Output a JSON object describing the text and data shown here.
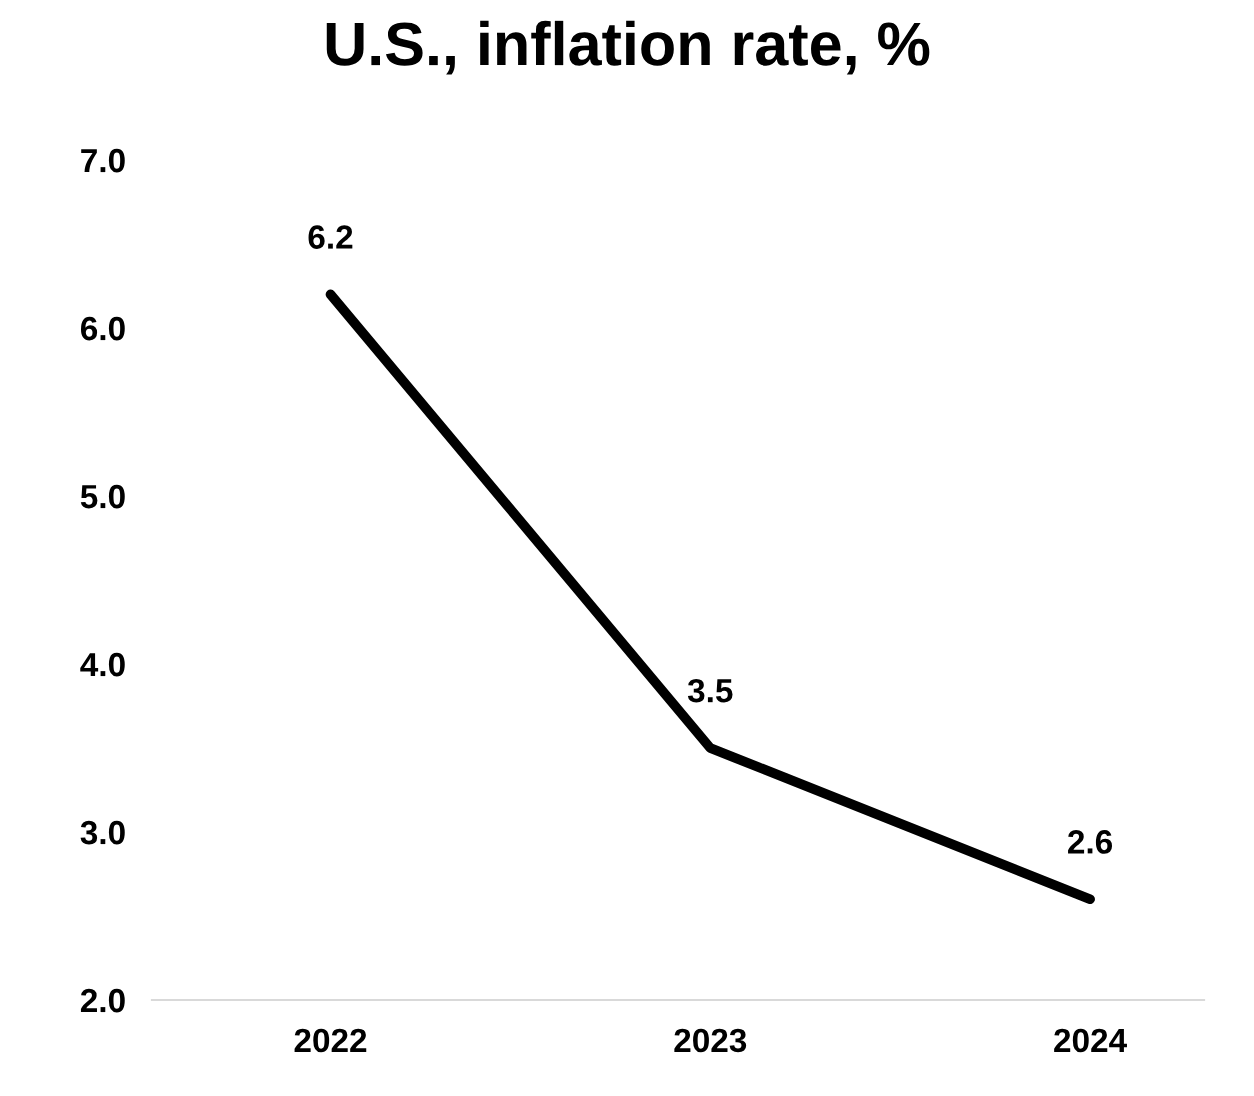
{
  "chart_data": {
    "type": "line",
    "title": "U.S., inflation rate, %",
    "categories": [
      "2022",
      "2023",
      "2024"
    ],
    "series": [
      {
        "color": "#000000",
        "values": [
          6.2,
          3.5,
          2.6
        ]
      }
    ],
    "ylim": [
      2,
      7
    ],
    "yticks": [
      {
        "value": 2,
        "label": "2.0"
      },
      {
        "value": 3,
        "label": "3.0"
      },
      {
        "value": 4,
        "label": "4.0"
      },
      {
        "value": 5,
        "label": "5.0"
      },
      {
        "value": 6,
        "label": "6.0"
      },
      {
        "value": 7,
        "label": "7.0"
      }
    ],
    "data_labels": true,
    "grid": false,
    "marker": "none",
    "line_style": "solid"
  }
}
